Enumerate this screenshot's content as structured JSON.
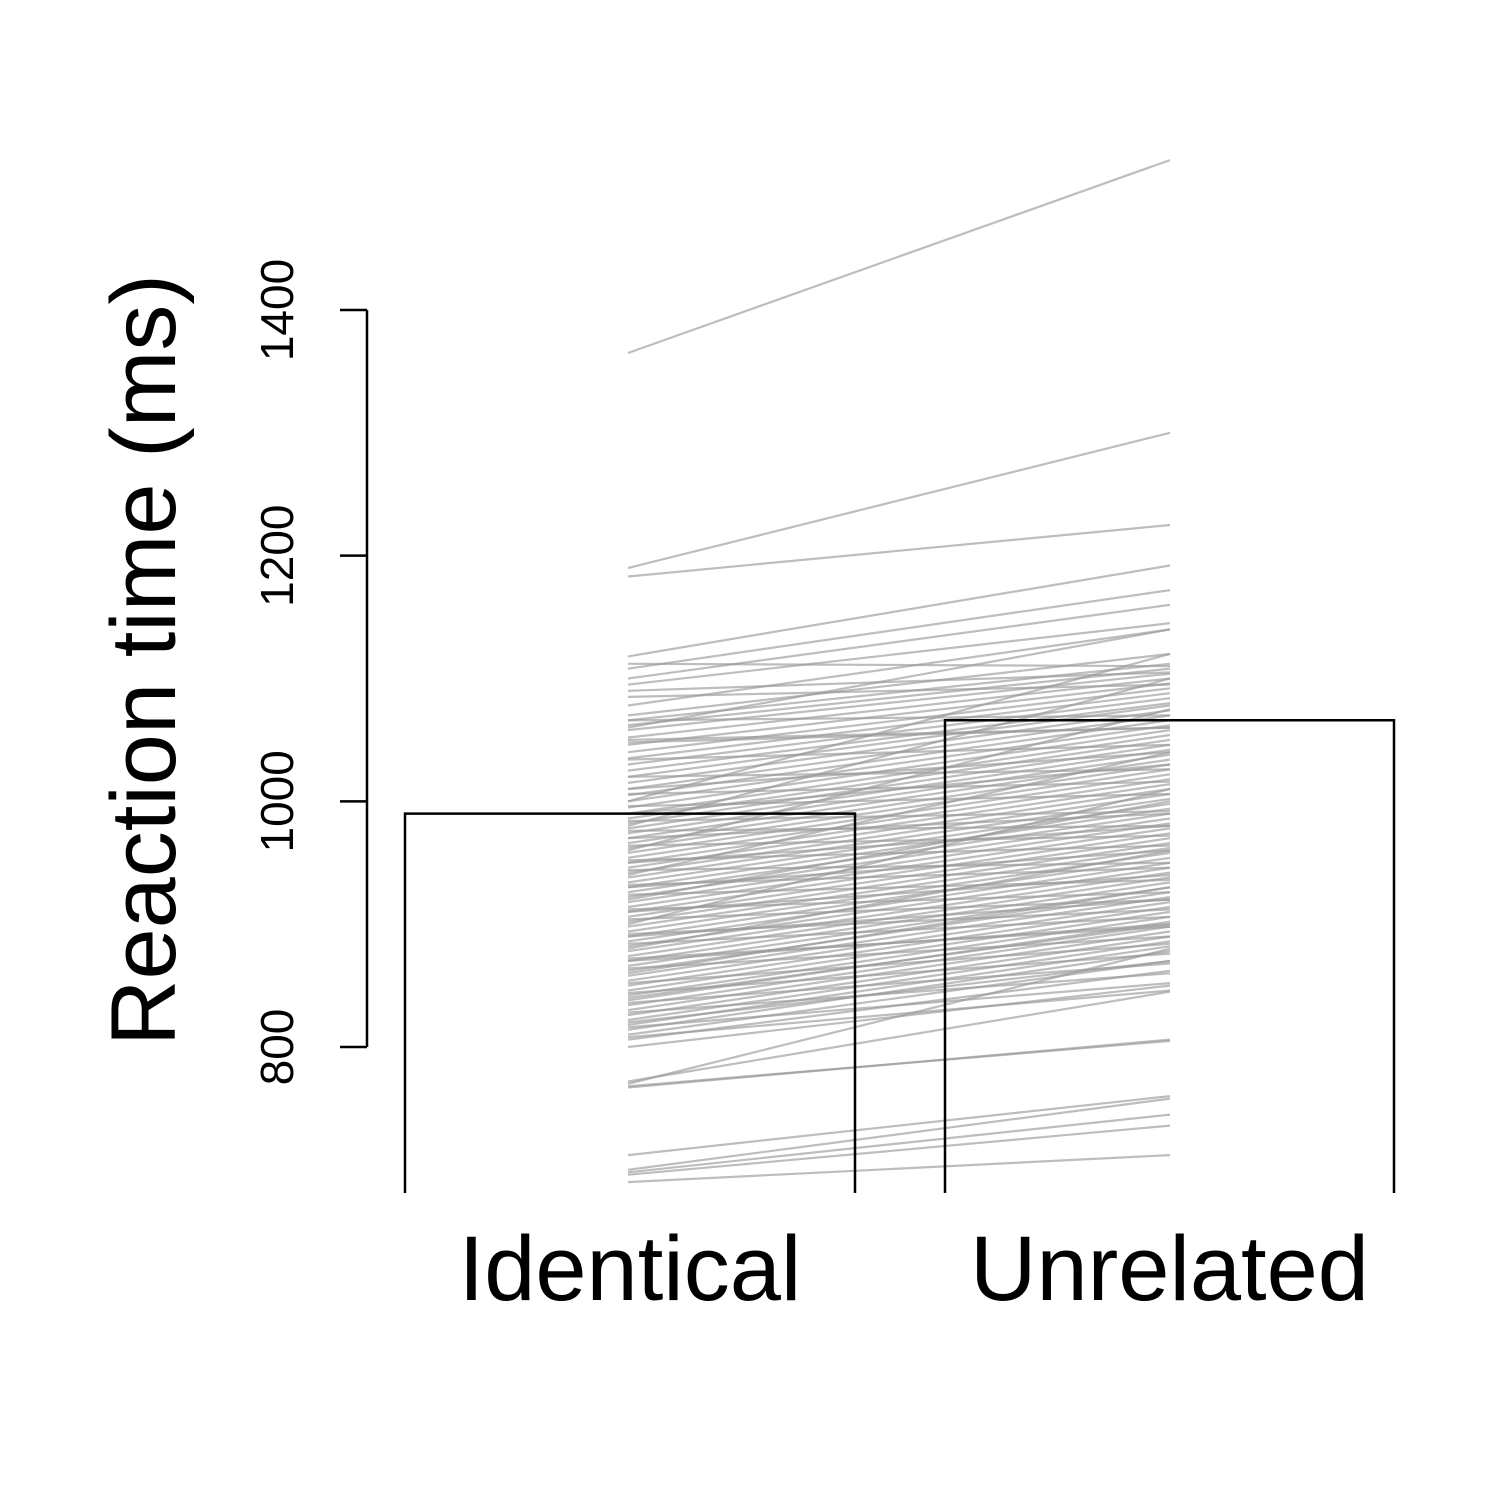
{
  "chart_data": {
    "type": "bar",
    "title": "",
    "xlabel": "",
    "ylabel": "Reaction time (ms)",
    "categories": [
      "Identical",
      "Unrelated"
    ],
    "values": [
      990,
      1066
    ],
    "ylim": [
      680,
      1400
    ],
    "yticks": [
      800,
      1000,
      1200,
      1400
    ],
    "grid": false,
    "bar_fill": "none",
    "bar_stroke": "#000000",
    "overlay": {
      "type": "line",
      "description_color": "#999999",
      "paired_values": [
        [
          1365,
          1522
        ],
        [
          1190,
          1300
        ],
        [
          1183,
          1225
        ],
        [
          1118,
          1192
        ],
        [
          1108,
          1172
        ],
        [
          1100,
          1160
        ],
        [
          1095,
          1145
        ],
        [
          1078,
          1140
        ],
        [
          1070,
          1120
        ],
        [
          1066,
          1112
        ],
        [
          1062,
          1108
        ],
        [
          1058,
          1104
        ],
        [
          1052,
          1100
        ],
        [
          1046,
          1096
        ],
        [
          1040,
          1092
        ],
        [
          1035,
          1088
        ],
        [
          1030,
          1084
        ],
        [
          1025,
          1080
        ],
        [
          1020,
          1078
        ],
        [
          1015,
          1074
        ],
        [
          1010,
          1070
        ],
        [
          1005,
          1066
        ],
        [
          1000,
          1062
        ],
        [
          995,
          1058
        ],
        [
          990,
          1054
        ],
        [
          986,
          1050
        ],
        [
          982,
          1046
        ],
        [
          978,
          1042
        ],
        [
          974,
          1038
        ],
        [
          970,
          1034
        ],
        [
          966,
          1030
        ],
        [
          962,
          1026
        ],
        [
          958,
          1022
        ],
        [
          954,
          1018
        ],
        [
          950,
          1014
        ],
        [
          946,
          1010
        ],
        [
          942,
          1006
        ],
        [
          938,
          1002
        ],
        [
          934,
          998
        ],
        [
          930,
          994
        ],
        [
          926,
          990
        ],
        [
          922,
          986
        ],
        [
          918,
          982
        ],
        [
          914,
          978
        ],
        [
          910,
          974
        ],
        [
          906,
          970
        ],
        [
          902,
          966
        ],
        [
          898,
          962
        ],
        [
          894,
          958
        ],
        [
          890,
          954
        ],
        [
          886,
          950
        ],
        [
          882,
          946
        ],
        [
          878,
          942
        ],
        [
          874,
          938
        ],
        [
          870,
          934
        ],
        [
          866,
          930
        ],
        [
          862,
          926
        ],
        [
          858,
          922
        ],
        [
          854,
          918
        ],
        [
          850,
          914
        ],
        [
          846,
          910
        ],
        [
          842,
          906
        ],
        [
          838,
          902
        ],
        [
          834,
          898
        ],
        [
          830,
          894
        ],
        [
          826,
          890
        ],
        [
          822,
          886
        ],
        [
          818,
          882
        ],
        [
          814,
          878
        ],
        [
          810,
          870
        ],
        [
          806,
          862
        ],
        [
          1112,
          1110
        ],
        [
          1090,
          1105
        ],
        [
          1060,
          1140
        ],
        [
          1048,
          1060
        ],
        [
          1000,
          1120
        ],
        [
          980,
          1100
        ],
        [
          960,
          1075
        ],
        [
          940,
          1040
        ],
        [
          920,
          1000
        ],
        [
          900,
          1010
        ],
        [
          880,
          960
        ],
        [
          860,
          930
        ],
        [
          840,
          900
        ],
        [
          820,
          870
        ],
        [
          800,
          850
        ],
        [
          1010,
          1040
        ],
        [
          990,
          1030
        ],
        [
          970,
          990
        ],
        [
          950,
          980
        ],
        [
          930,
          960
        ],
        [
          910,
          940
        ],
        [
          890,
          920
        ],
        [
          870,
          900
        ],
        [
          1085,
          1095
        ],
        [
          1066,
          1070
        ],
        [
          1050,
          1060
        ],
        [
          1034,
          1046
        ],
        [
          1020,
          1026
        ],
        [
          1006,
          1016
        ],
        [
          996,
          1006
        ],
        [
          984,
          992
        ],
        [
          976,
          980
        ],
        [
          964,
          972
        ],
        [
          952,
          964
        ],
        [
          944,
          950
        ],
        [
          932,
          946
        ],
        [
          924,
          936
        ],
        [
          912,
          926
        ],
        [
          904,
          920
        ],
        [
          892,
          912
        ],
        [
          884,
          906
        ],
        [
          872,
          898
        ],
        [
          864,
          890
        ],
        [
          852,
          884
        ],
        [
          844,
          876
        ],
        [
          836,
          868
        ],
        [
          828,
          860
        ],
        [
          816,
          852
        ],
        [
          808,
          846
        ],
        [
          770,
          880
        ],
        [
          772,
          845
        ],
        [
          768,
          805
        ],
        [
          767,
          806
        ],
        [
          700,
          758
        ],
        [
          696,
          736
        ],
        [
          690,
          712
        ],
        [
          712,
          760
        ],
        [
          698,
          745
        ]
      ]
    }
  }
}
